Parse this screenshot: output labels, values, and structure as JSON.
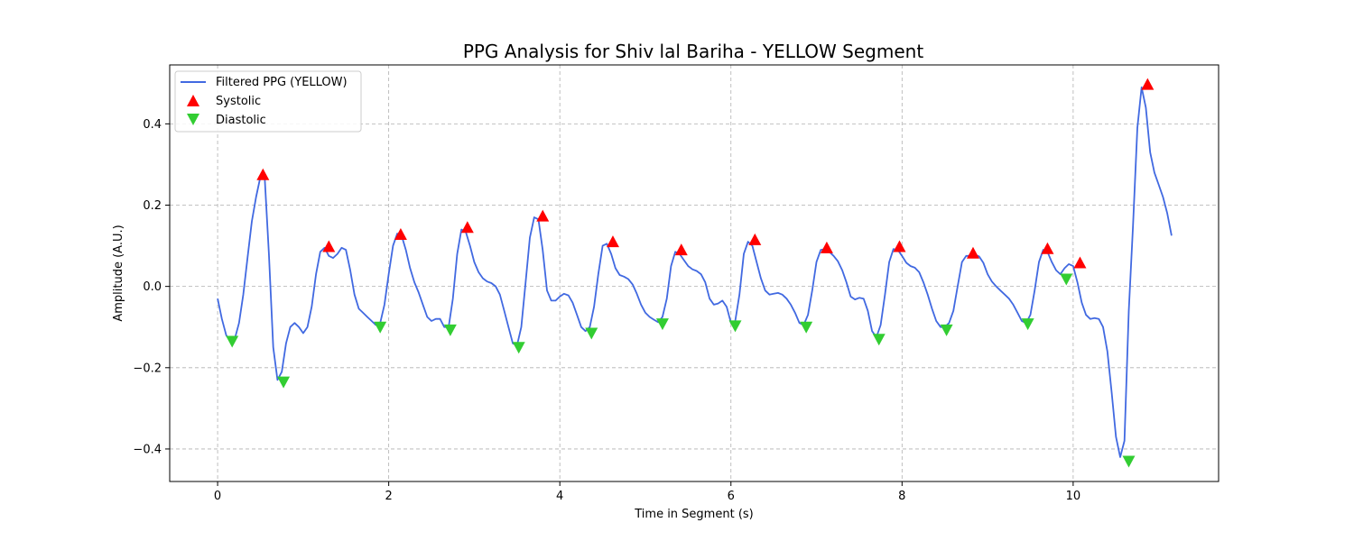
{
  "chart_data": {
    "type": "line",
    "title": "PPG Analysis for Shiv lal Bariha - YELLOW Segment",
    "xlabel": "Time in Segment (s)",
    "ylabel": "Amplitude (A.U.)",
    "xlim": [
      -0.56,
      11.7
    ],
    "ylim": [
      -0.48,
      0.545
    ],
    "xticks": [
      0,
      2,
      4,
      6,
      8,
      10
    ],
    "yticks": [
      -0.4,
      -0.2,
      0.0,
      0.2,
      0.4
    ],
    "xtick_labels": [
      "0",
      "2",
      "4",
      "6",
      "8",
      "10"
    ],
    "ytick_labels": [
      "−0.4",
      "−0.2",
      "0.0",
      "0.2",
      "0.4"
    ],
    "grid": true,
    "legend_position": "top-left",
    "colors": {
      "line": "#4169e1",
      "systolic": "#ff0000",
      "diastolic": "#32cd32"
    },
    "series": [
      {
        "name": "Filtered PPG (YELLOW)",
        "kind": "line",
        "x": [
          0.0,
          0.05,
          0.1,
          0.15,
          0.2,
          0.25,
          0.3,
          0.35,
          0.4,
          0.45,
          0.5,
          0.55,
          0.6,
          0.65,
          0.7,
          0.75,
          0.8,
          0.85,
          0.9,
          0.95,
          1.0,
          1.05,
          1.1,
          1.15,
          1.2,
          1.25,
          1.3,
          1.35,
          1.4,
          1.45,
          1.5,
          1.55,
          1.6,
          1.65,
          1.7,
          1.75,
          1.8,
          1.85,
          1.9,
          1.95,
          2.0,
          2.05,
          2.1,
          2.15,
          2.2,
          2.25,
          2.3,
          2.35,
          2.4,
          2.45,
          2.5,
          2.55,
          2.6,
          2.65,
          2.7,
          2.75,
          2.8,
          2.85,
          2.9,
          2.95,
          3.0,
          3.05,
          3.1,
          3.15,
          3.2,
          3.25,
          3.3,
          3.35,
          3.4,
          3.45,
          3.5,
          3.55,
          3.6,
          3.65,
          3.7,
          3.75,
          3.8,
          3.85,
          3.9,
          3.95,
          4.0,
          4.05,
          4.1,
          4.15,
          4.2,
          4.25,
          4.3,
          4.35,
          4.4,
          4.45,
          4.5,
          4.55,
          4.6,
          4.65,
          4.7,
          4.75,
          4.8,
          4.85,
          4.9,
          4.95,
          5.0,
          5.05,
          5.1,
          5.15,
          5.2,
          5.25,
          5.3,
          5.35,
          5.4,
          5.45,
          5.5,
          5.55,
          5.6,
          5.65,
          5.7,
          5.75,
          5.8,
          5.85,
          5.9,
          5.95,
          6.0,
          6.05,
          6.1,
          6.15,
          6.2,
          6.25,
          6.3,
          6.35,
          6.4,
          6.45,
          6.5,
          6.55,
          6.6,
          6.65,
          6.7,
          6.75,
          6.8,
          6.85,
          6.9,
          6.95,
          7.0,
          7.05,
          7.1,
          7.15,
          7.2,
          7.25,
          7.3,
          7.35,
          7.4,
          7.45,
          7.5,
          7.55,
          7.6,
          7.65,
          7.7,
          7.75,
          7.8,
          7.85,
          7.9,
          7.95,
          8.0,
          8.05,
          8.1,
          8.15,
          8.2,
          8.25,
          8.3,
          8.35,
          8.4,
          8.45,
          8.5,
          8.55,
          8.6,
          8.65,
          8.7,
          8.75,
          8.8,
          8.85,
          8.9,
          8.95,
          9.0,
          9.05,
          9.1,
          9.15,
          9.2,
          9.25,
          9.3,
          9.35,
          9.4,
          9.45,
          9.5,
          9.55,
          9.6,
          9.65,
          9.7,
          9.75,
          9.8,
          9.85,
          9.9,
          9.95,
          10.0,
          10.05,
          10.1,
          10.15,
          10.2,
          10.25,
          10.3,
          10.35,
          10.4,
          10.45,
          10.5,
          10.55,
          10.6,
          10.65,
          10.7,
          10.75,
          10.8,
          10.85,
          10.9,
          10.95,
          11.0,
          11.05,
          11.1,
          11.15
        ],
        "y": [
          -0.03,
          -0.08,
          -0.12,
          -0.135,
          -0.13,
          -0.09,
          -0.02,
          0.07,
          0.16,
          0.22,
          0.27,
          0.27,
          0.08,
          -0.15,
          -0.23,
          -0.21,
          -0.14,
          -0.1,
          -0.09,
          -0.1,
          -0.115,
          -0.1,
          -0.05,
          0.03,
          0.085,
          0.095,
          0.075,
          0.07,
          0.08,
          0.095,
          0.09,
          0.04,
          -0.02,
          -0.055,
          -0.065,
          -0.075,
          -0.085,
          -0.095,
          -0.09,
          -0.045,
          0.03,
          0.1,
          0.13,
          0.125,
          0.09,
          0.045,
          0.01,
          -0.015,
          -0.045,
          -0.075,
          -0.085,
          -0.08,
          -0.08,
          -0.1,
          -0.1,
          -0.03,
          0.08,
          0.14,
          0.135,
          0.1,
          0.06,
          0.035,
          0.02,
          0.012,
          0.008,
          0.0,
          -0.02,
          -0.06,
          -0.1,
          -0.14,
          -0.145,
          -0.1,
          0.01,
          0.12,
          0.17,
          0.165,
          0.09,
          -0.01,
          -0.035,
          -0.035,
          -0.025,
          -0.018,
          -0.022,
          -0.04,
          -0.07,
          -0.1,
          -0.11,
          -0.1,
          -0.05,
          0.03,
          0.1,
          0.105,
          0.08,
          0.045,
          0.028,
          0.024,
          0.018,
          0.005,
          -0.018,
          -0.045,
          -0.065,
          -0.075,
          -0.082,
          -0.088,
          -0.075,
          -0.03,
          0.05,
          0.085,
          0.08,
          0.065,
          0.05,
          0.042,
          0.038,
          0.03,
          0.01,
          -0.03,
          -0.045,
          -0.042,
          -0.035,
          -0.05,
          -0.09,
          -0.085,
          -0.02,
          0.08,
          0.11,
          0.1,
          0.06,
          0.02,
          -0.01,
          -0.02,
          -0.018,
          -0.016,
          -0.02,
          -0.03,
          -0.045,
          -0.065,
          -0.09,
          -0.095,
          -0.07,
          -0.01,
          0.06,
          0.09,
          0.092,
          0.085,
          0.075,
          0.062,
          0.04,
          0.01,
          -0.025,
          -0.032,
          -0.028,
          -0.03,
          -0.06,
          -0.11,
          -0.125,
          -0.095,
          -0.02,
          0.06,
          0.092,
          0.09,
          0.075,
          0.058,
          0.05,
          0.046,
          0.035,
          0.01,
          -0.02,
          -0.055,
          -0.085,
          -0.1,
          -0.1,
          -0.09,
          -0.06,
          0.0,
          0.06,
          0.075,
          0.075,
          0.078,
          0.074,
          0.058,
          0.03,
          0.012,
          0.0,
          -0.01,
          -0.02,
          -0.03,
          -0.045,
          -0.065,
          -0.085,
          -0.09,
          -0.07,
          -0.01,
          0.06,
          0.09,
          0.085,
          0.06,
          0.04,
          0.03,
          0.045,
          0.055,
          0.05,
          0.01,
          -0.04,
          -0.07,
          -0.08,
          -0.078,
          -0.08,
          -0.1,
          -0.16,
          -0.26,
          -0.37,
          -0.42,
          -0.38,
          -0.06,
          0.15,
          0.39,
          0.49,
          0.44,
          0.33,
          0.28,
          0.25,
          0.22,
          0.18,
          0.125
        ]
      },
      {
        "name": "Systolic",
        "kind": "marker",
        "marker": "triangle-up",
        "x": [
          0.53,
          1.3,
          2.14,
          2.92,
          3.8,
          4.62,
          5.42,
          6.28,
          7.12,
          7.97,
          8.83,
          9.7,
          10.08,
          10.87
        ],
        "y": [
          0.275,
          0.098,
          0.128,
          0.145,
          0.173,
          0.11,
          0.09,
          0.115,
          0.095,
          0.098,
          0.082,
          0.093,
          0.058,
          0.497
        ]
      },
      {
        "name": "Diastolic",
        "kind": "marker",
        "marker": "triangle-down",
        "x": [
          0.17,
          0.77,
          1.9,
          2.72,
          3.52,
          4.37,
          5.2,
          6.05,
          6.88,
          7.73,
          8.52,
          9.47,
          9.92,
          10.65
        ],
        "y": [
          -0.135,
          -0.235,
          -0.1,
          -0.107,
          -0.15,
          -0.115,
          -0.092,
          -0.097,
          -0.1,
          -0.13,
          -0.107,
          -0.092,
          0.018,
          -0.43
        ]
      }
    ]
  }
}
